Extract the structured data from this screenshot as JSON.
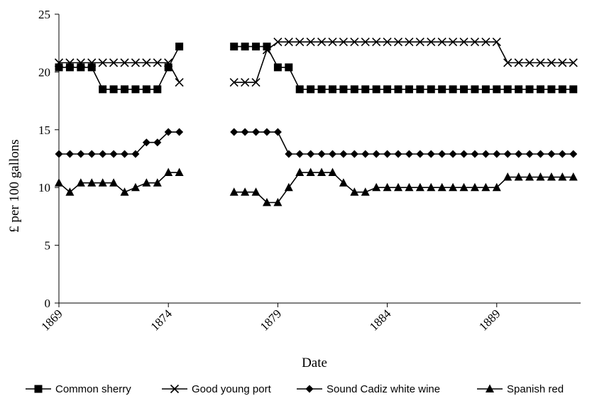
{
  "chart_data": {
    "type": "line",
    "title": "",
    "xlabel": "Date",
    "ylabel": "£ per 100 gallons",
    "x_axis_type": "date",
    "xlim": [
      "1869-01",
      "1892-11"
    ],
    "ylim": [
      0,
      25
    ],
    "y_ticks": [
      0,
      5,
      10,
      15,
      20,
      25
    ],
    "x_ticks": [
      {
        "x": "1869-01",
        "label": "1869"
      },
      {
        "x": "1874-01",
        "label": "1874"
      },
      {
        "x": "1879-01",
        "label": "1879"
      },
      {
        "x": "1884-01",
        "label": "1884"
      },
      {
        "x": "1889-01",
        "label": "1889"
      }
    ],
    "grid": false,
    "legend_position": "bottom",
    "x": [
      "1869-01",
      "1869-07",
      "1870-01",
      "1870-07",
      "1871-01",
      "1871-07",
      "1872-01",
      "1872-07",
      "1873-01",
      "1873-07",
      "1874-01",
      "1874-07",
      "1875-01",
      "1875-07",
      "1876-01",
      "1876-07",
      "1877-01",
      "1877-07",
      "1878-01",
      "1878-07",
      "1879-01",
      "1879-07",
      "1880-01",
      "1880-07",
      "1881-01",
      "1881-07",
      "1882-01",
      "1882-07",
      "1883-01",
      "1883-07",
      "1884-01",
      "1884-07",
      "1885-01",
      "1885-07",
      "1886-01",
      "1886-07",
      "1887-01",
      "1887-07",
      "1888-01",
      "1888-07",
      "1889-01",
      "1889-07",
      "1890-01",
      "1890-07",
      "1891-01",
      "1891-07",
      "1892-01",
      "1892-07"
    ],
    "series": [
      {
        "name": "Common sherry",
        "marker": "square",
        "values": [
          20.4,
          20.4,
          20.4,
          20.4,
          18.5,
          18.5,
          18.5,
          18.5,
          18.5,
          18.5,
          20.4,
          22.2,
          null,
          null,
          null,
          null,
          22.2,
          22.2,
          22.2,
          22.2,
          20.4,
          20.4,
          18.5,
          18.5,
          18.5,
          18.5,
          18.5,
          18.5,
          18.5,
          18.5,
          18.5,
          18.5,
          18.5,
          18.5,
          18.5,
          18.5,
          18.5,
          18.5,
          18.5,
          18.5,
          18.5,
          18.5,
          18.5,
          18.5,
          18.5,
          18.5,
          18.5,
          18.5
        ]
      },
      {
        "name": "Good young port",
        "marker": "x",
        "values": [
          20.8,
          20.8,
          20.8,
          20.8,
          20.8,
          20.8,
          20.8,
          20.8,
          20.8,
          20.8,
          20.8,
          19.1,
          null,
          null,
          null,
          null,
          19.1,
          19.1,
          19.1,
          21.9,
          22.6,
          22.6,
          22.6,
          22.6,
          22.6,
          22.6,
          22.6,
          22.6,
          22.6,
          22.6,
          22.6,
          22.6,
          22.6,
          22.6,
          22.6,
          22.6,
          22.6,
          22.6,
          22.6,
          22.6,
          22.6,
          20.8,
          20.8,
          20.8,
          20.8,
          20.8,
          20.8,
          20.8
        ]
      },
      {
        "name": "Sound Cadiz white wine",
        "marker": "diamond",
        "values": [
          12.9,
          12.9,
          12.9,
          12.9,
          12.9,
          12.9,
          12.9,
          12.9,
          13.9,
          13.9,
          14.8,
          14.8,
          null,
          null,
          null,
          null,
          14.8,
          14.8,
          14.8,
          14.8,
          14.8,
          12.9,
          12.9,
          12.9,
          12.9,
          12.9,
          12.9,
          12.9,
          12.9,
          12.9,
          12.9,
          12.9,
          12.9,
          12.9,
          12.9,
          12.9,
          12.9,
          12.9,
          12.9,
          12.9,
          12.9,
          12.9,
          12.9,
          12.9,
          12.9,
          12.9,
          12.9,
          12.9
        ]
      },
      {
        "name": "Spanish red",
        "marker": "triangle",
        "values": [
          10.4,
          9.6,
          10.4,
          10.4,
          10.4,
          10.4,
          9.6,
          10.0,
          10.4,
          10.4,
          11.3,
          11.3,
          null,
          null,
          null,
          null,
          9.6,
          9.6,
          9.6,
          8.7,
          8.7,
          10.0,
          11.3,
          11.3,
          11.3,
          11.3,
          10.4,
          9.6,
          9.6,
          10.0,
          10.0,
          10.0,
          10.0,
          10.0,
          10.0,
          10.0,
          10.0,
          10.0,
          10.0,
          10.0,
          10.0,
          10.9,
          10.9,
          10.9,
          10.9,
          10.9,
          10.9,
          10.9
        ]
      }
    ]
  }
}
